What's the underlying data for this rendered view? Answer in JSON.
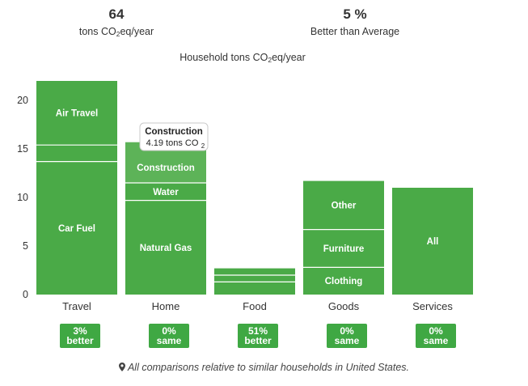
{
  "summary": {
    "total": {
      "value": "64",
      "unit_prefix": "tons CO",
      "unit_sub": "2",
      "unit_suffix": "eq/year"
    },
    "comparison": {
      "value": "5 %",
      "label": "Better than Average"
    }
  },
  "badges": [
    {
      "percent": "3%",
      "word": "better",
      "color": "#3fa843"
    },
    {
      "percent": "0%",
      "word": "same",
      "color": "#3fa843"
    },
    {
      "percent": "51%",
      "word": "better",
      "color": "#3fa843"
    },
    {
      "percent": "0%",
      "word": "same",
      "color": "#3fa843"
    },
    {
      "percent": "0%",
      "word": "same",
      "color": "#3fa843"
    }
  ],
  "footnote": {
    "icon": "map-marker-icon",
    "text": "All comparisons relative to similar households in United States."
  },
  "chart_data": {
    "type": "bar",
    "stacked": true,
    "title_prefix": "Household tons CO",
    "title_sub": "2",
    "title_suffix": "eq/year",
    "categories": [
      "Travel",
      "Home",
      "Food",
      "Goods",
      "Services"
    ],
    "ylim": [
      0,
      22
    ],
    "yticks": [
      0,
      5,
      10,
      15,
      20
    ],
    "grid": false,
    "bar_color": "#4aaa47",
    "highlight_color": "#5db358",
    "segments": [
      [
        {
          "label": "Car Fuel",
          "value": 13.7
        },
        {
          "label": "",
          "value": 1.7
        },
        {
          "label": "Air Travel",
          "value": 6.6
        }
      ],
      [
        {
          "label": "Natural Gas",
          "value": 9.7
        },
        {
          "label": "Water",
          "value": 1.8
        },
        {
          "label": "Construction",
          "value": 4.19
        }
      ],
      [
        {
          "label": "",
          "value": 1.3
        },
        {
          "label": "",
          "value": 0.7
        },
        {
          "label": "",
          "value": 0.7
        }
      ],
      [
        {
          "label": "Clothing",
          "value": 2.8
        },
        {
          "label": "Furniture",
          "value": 3.9
        },
        {
          "label": "Other",
          "value": 5.0
        }
      ],
      [
        {
          "label": "All",
          "value": 11.0
        }
      ]
    ],
    "tooltip": {
      "title": "Construction",
      "text_prefix": "4.19 tons CO",
      "text_sub": "2"
    }
  }
}
